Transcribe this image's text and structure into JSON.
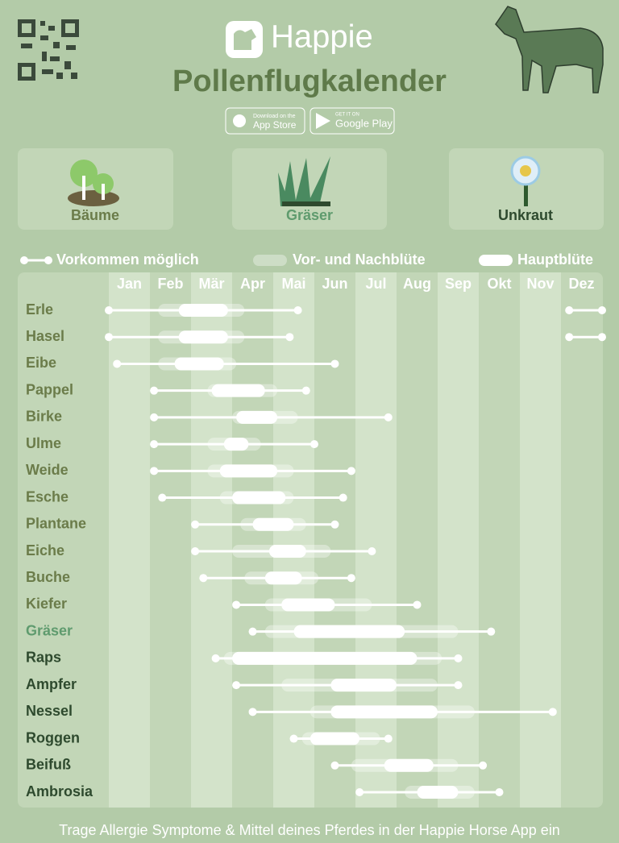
{
  "header": {
    "brand": "Happie",
    "appstore_small": "Download on the",
    "appstore": "App Store",
    "googleplay_small": "GET IT ON",
    "googleplay": "Google Play"
  },
  "tiles": [
    "Bäume",
    "Gräser",
    "Unkraut"
  ],
  "legend": [
    "Vorkommen möglich",
    "Vor- und Nachblüte",
    "Hauptblüte"
  ],
  "footer": "Trage Allergie Symptome & Mittel deines Pferdes in der Happie Horse App ein",
  "chart_data": {
    "type": "range",
    "title": "Pollenflugkalender",
    "categories": [
      "Jan",
      "Feb",
      "Mär",
      "Apr",
      "Mai",
      "Jun",
      "Jul",
      "Aug",
      "Sep",
      "Okt",
      "Nov",
      "Dez"
    ],
    "xlim": [
      0,
      12
    ],
    "series": [
      {
        "name": "Erle",
        "color": "#6b7c4a",
        "possible": [
          [
            0,
            4.6
          ],
          [
            11.2,
            12
          ]
        ],
        "side": [
          1.2,
          3.3
        ],
        "main": [
          1.7,
          2.9
        ]
      },
      {
        "name": "Hasel",
        "color": "#6b7c4a",
        "possible": [
          [
            0,
            4.4
          ],
          [
            11.2,
            12
          ]
        ],
        "side": [
          1.2,
          3.3
        ],
        "main": [
          1.7,
          2.9
        ]
      },
      {
        "name": "Eibe",
        "color": "#6b7c4a",
        "possible": [
          [
            0.2,
            5.5
          ]
        ],
        "side": [
          1.2,
          3.1
        ],
        "main": [
          1.6,
          2.8
        ]
      },
      {
        "name": "Pappel",
        "color": "#6b7c4a",
        "possible": [
          [
            1.1,
            4.8
          ]
        ],
        "side": [
          2.4,
          4.1
        ],
        "main": [
          2.5,
          3.8
        ]
      },
      {
        "name": "Birke",
        "color": "#6b7c4a",
        "possible": [
          [
            1.1,
            6.8
          ]
        ],
        "side": [
          3.0,
          4.6
        ],
        "main": [
          3.1,
          4.1
        ]
      },
      {
        "name": "Ulme",
        "color": "#6b7c4a",
        "possible": [
          [
            1.1,
            5.0
          ]
        ],
        "side": [
          2.4,
          3.7
        ],
        "main": [
          2.8,
          3.4
        ]
      },
      {
        "name": "Weide",
        "color": "#6b7c4a",
        "possible": [
          [
            1.1,
            5.9
          ]
        ],
        "side": [
          2.4,
          4.5
        ],
        "main": [
          2.7,
          4.1
        ]
      },
      {
        "name": "Esche",
        "color": "#6b7c4a",
        "possible": [
          [
            1.3,
            5.7
          ]
        ],
        "side": [
          2.7,
          4.5
        ],
        "main": [
          3.0,
          4.3
        ]
      },
      {
        "name": "Plantane",
        "color": "#6b7c4a",
        "possible": [
          [
            2.1,
            5.5
          ]
        ],
        "side": [
          3.2,
          4.8
        ],
        "main": [
          3.5,
          4.5
        ]
      },
      {
        "name": "Eiche",
        "color": "#6b7c4a",
        "possible": [
          [
            2.1,
            6.4
          ]
        ],
        "side": [
          3.0,
          5.4
        ],
        "main": [
          3.9,
          4.8
        ]
      },
      {
        "name": "Buche",
        "color": "#6b7c4a",
        "possible": [
          [
            2.3,
            5.9
          ]
        ],
        "side": [
          3.3,
          5.1
        ],
        "main": [
          3.8,
          4.7
        ]
      },
      {
        "name": "Kiefer",
        "color": "#6b7c4a",
        "possible": [
          [
            3.1,
            7.5
          ]
        ],
        "side": [
          3.8,
          6.4
        ],
        "main": [
          4.2,
          5.5
        ]
      },
      {
        "name": "Gräser",
        "color": "#5f9b6e",
        "possible": [
          [
            3.5,
            9.3
          ]
        ],
        "side": [
          3.8,
          8.5
        ],
        "main": [
          4.5,
          7.2
        ]
      },
      {
        "name": "Raps",
        "color": "#2e4a2e",
        "possible": [
          [
            2.6,
            8.5
          ]
        ],
        "side": [
          2.8,
          8.1
        ],
        "main": [
          3.0,
          7.5
        ]
      },
      {
        "name": "Ampfer",
        "color": "#2e4a2e",
        "possible": [
          [
            3.1,
            8.5
          ]
        ],
        "side": [
          4.2,
          8.0
        ],
        "main": [
          5.4,
          7.0
        ]
      },
      {
        "name": "Nessel",
        "color": "#2e4a2e",
        "possible": [
          [
            3.5,
            10.8
          ]
        ],
        "side": [
          4.9,
          8.9
        ],
        "main": [
          5.4,
          8.0
        ]
      },
      {
        "name": "Roggen",
        "color": "#2e4a2e",
        "possible": [
          [
            4.5,
            6.8
          ]
        ],
        "side": [
          4.7,
          6.6
        ],
        "main": [
          4.9,
          6.1
        ]
      },
      {
        "name": "Beifuß",
        "color": "#2e4a2e",
        "possible": [
          [
            5.5,
            9.1
          ]
        ],
        "side": [
          5.9,
          8.5
        ],
        "main": [
          6.7,
          7.9
        ]
      },
      {
        "name": "Ambrosia",
        "color": "#2e4a2e",
        "possible": [
          [
            6.1,
            9.5
          ]
        ],
        "side": [
          7.2,
          8.9
        ],
        "main": [
          7.5,
          8.5
        ]
      }
    ]
  }
}
